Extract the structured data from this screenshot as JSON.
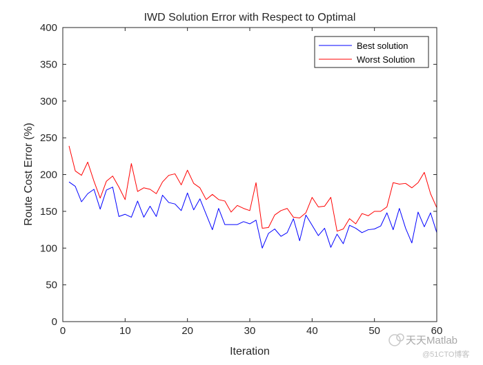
{
  "chart_data": {
    "type": "line",
    "title": "IWD Solution Error with Respect to Optimal",
    "xlabel": "Iteration",
    "ylabel": "Route Cost Error (%)",
    "xlim": [
      0,
      60
    ],
    "ylim": [
      0,
      400
    ],
    "xticks": [
      0,
      10,
      20,
      30,
      40,
      50,
      60
    ],
    "yticks": [
      0,
      50,
      100,
      150,
      200,
      250,
      300,
      350,
      400
    ],
    "grid": false,
    "legend_position": "top-right",
    "x": [
      1,
      2,
      3,
      4,
      5,
      6,
      7,
      8,
      9,
      10,
      11,
      12,
      13,
      14,
      15,
      16,
      17,
      18,
      19,
      20,
      21,
      22,
      23,
      24,
      25,
      26,
      27,
      28,
      29,
      30,
      31,
      32,
      33,
      34,
      35,
      36,
      37,
      38,
      39,
      40,
      41,
      42,
      43,
      44,
      45,
      46,
      47,
      48,
      49,
      50,
      51,
      52,
      53,
      54,
      55,
      56,
      57,
      58,
      59,
      60
    ],
    "series": [
      {
        "name": "Best solution",
        "color": "#0000ff",
        "values": [
          190,
          184,
          163,
          174,
          180,
          153,
          179,
          183,
          143,
          146,
          142,
          164,
          142,
          157,
          143,
          172,
          162,
          160,
          151,
          175,
          152,
          167,
          146,
          125,
          154,
          132,
          132,
          132,
          136,
          133,
          138,
          100,
          120,
          126,
          116,
          121,
          140,
          110,
          145,
          131,
          117,
          127,
          101,
          119,
          106,
          131,
          127,
          121,
          125,
          126,
          130,
          148,
          125,
          154,
          127,
          107,
          149,
          129,
          148,
          121
        ]
      },
      {
        "name": "Worst Solution",
        "color": "#ff0000",
        "values": [
          239,
          205,
          199,
          217,
          191,
          168,
          191,
          198,
          183,
          166,
          215,
          177,
          182,
          180,
          174,
          190,
          199,
          201,
          186,
          206,
          188,
          182,
          166,
          173,
          166,
          164,
          149,
          158,
          154,
          151,
          189,
          127,
          128,
          145,
          151,
          154,
          142,
          141,
          148,
          169,
          156,
          157,
          169,
          123,
          126,
          140,
          133,
          147,
          144,
          150,
          150,
          156,
          189,
          187,
          188,
          182,
          189,
          203,
          174,
          155
        ]
      }
    ]
  },
  "watermark": {
    "brand": "天天Matlab",
    "site": "@51CTO博客"
  }
}
